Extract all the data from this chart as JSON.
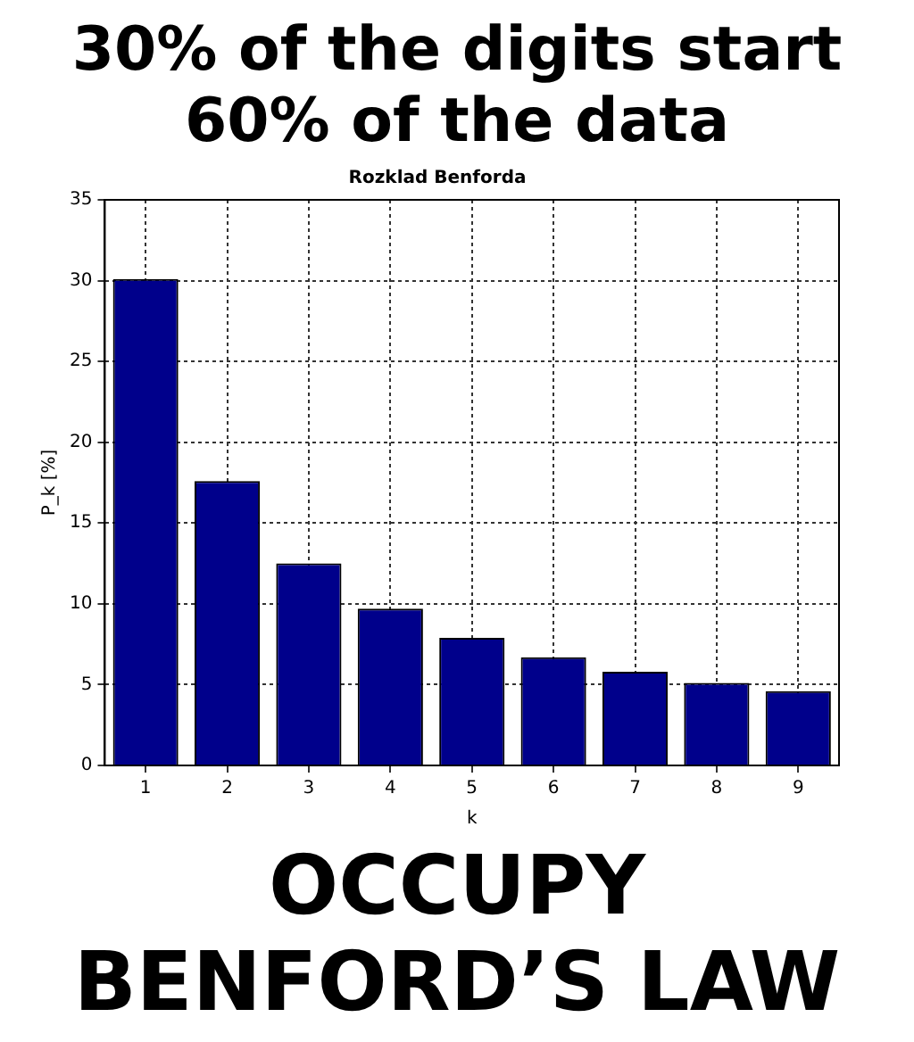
{
  "chart_data": {
    "type": "bar",
    "title": "Rozklad Benforda",
    "xlabel": "k",
    "ylabel": "P_k [%]",
    "categories": [
      "1",
      "2",
      "3",
      "4",
      "5",
      "6",
      "7",
      "8",
      "9"
    ],
    "values": [
      30.1,
      17.6,
      12.5,
      9.7,
      7.9,
      6.7,
      5.8,
      5.1,
      4.6
    ],
    "color": "#00008b",
    "ylim": [
      0,
      35
    ],
    "yticks": [
      0,
      5,
      10,
      15,
      20,
      25,
      30,
      35
    ],
    "grid": true,
    "annotations": [
      "30% of the digits start 60% of the data",
      "OCCUPY BENFORD’S LAW"
    ]
  }
}
